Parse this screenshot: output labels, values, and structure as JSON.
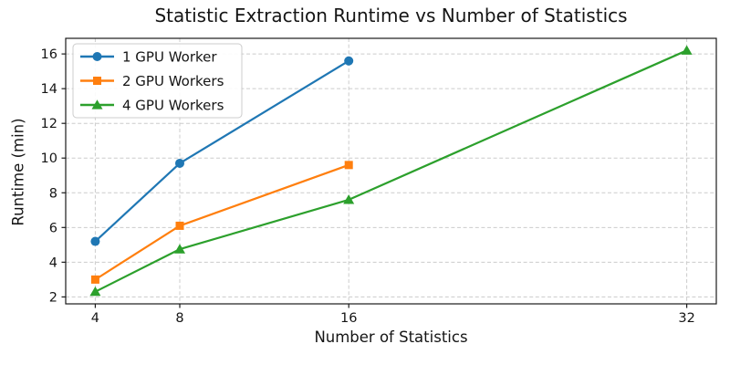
{
  "chart_data": {
    "type": "line",
    "title": "Statistic Extraction Runtime vs Number of Statistics",
    "xlabel": "Number of Statistics",
    "ylabel": "Runtime (min)",
    "x_ticks": [
      4,
      8,
      16,
      32
    ],
    "y_ticks": [
      2,
      4,
      6,
      8,
      10,
      12,
      14,
      16
    ],
    "xlim": [
      2.6,
      33.4
    ],
    "ylim": [
      1.6,
      16.9
    ],
    "grid": "dashed",
    "grid_color": "#cccccc",
    "legend_position": "upper-left",
    "series": [
      {
        "name": "1 GPU Worker",
        "color": "#1f77b4",
        "marker": "circle",
        "x": [
          4,
          8,
          16
        ],
        "y": [
          5.2,
          9.7,
          15.6
        ]
      },
      {
        "name": "2 GPU Workers",
        "color": "#ff7f0e",
        "marker": "square",
        "x": [
          4,
          8,
          16
        ],
        "y": [
          3.0,
          6.1,
          9.6
        ]
      },
      {
        "name": "4 GPU Workers",
        "color": "#2ca02c",
        "marker": "triangle",
        "x": [
          4,
          8,
          16,
          32
        ],
        "y": [
          2.3,
          4.75,
          7.6,
          16.2
        ]
      }
    ]
  }
}
